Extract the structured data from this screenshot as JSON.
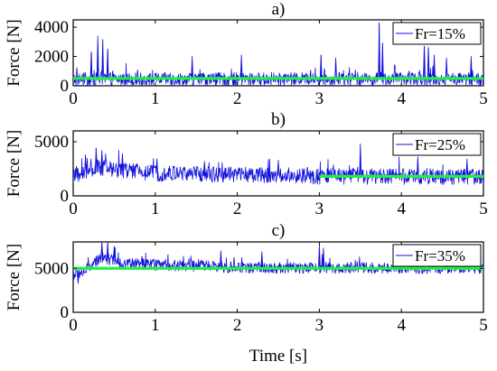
{
  "chart_data": [
    {
      "type": "line",
      "title": "a)",
      "xlabel": "",
      "ylabel": "Force [N]",
      "xlim": [
        0,
        5
      ],
      "ylim": [
        0,
        4500
      ],
      "xticks": [
        "0",
        "1",
        "2",
        "3",
        "4",
        "5"
      ],
      "yticks": [
        {
          "v": 0,
          "t": "0"
        },
        {
          "v": 2000,
          "t": "2000"
        },
        {
          "v": 4000,
          "t": "4000"
        }
      ],
      "grid": false,
      "legend_position": "top-right",
      "series": [
        {
          "name": "Fr=15%",
          "color": "#1010dd",
          "style": "noisy",
          "base": 450,
          "noise": 450,
          "floor": 0,
          "peaks": [
            [
              0.3,
              3400
            ],
            [
              0.36,
              3150
            ],
            [
              0.42,
              2500
            ],
            [
              0.22,
              2300
            ],
            [
              1.45,
              2000
            ],
            [
              2.05,
              2100
            ],
            [
              3.02,
              2100
            ],
            [
              3.2,
              1900
            ],
            [
              3.73,
              4300
            ],
            [
              3.77,
              2900
            ],
            [
              4.28,
              2700
            ],
            [
              4.33,
              2600
            ],
            [
              4.4,
              2100
            ],
            [
              4.55,
              1900
            ],
            [
              4.85,
              2000
            ]
          ]
        },
        {
          "name": "",
          "color": "#22ee44",
          "style": "mean",
          "x": [
            0,
            5
          ],
          "y": [
            500,
            500
          ]
        }
      ]
    },
    {
      "type": "line",
      "title": "b)",
      "xlabel": "",
      "ylabel": "Force [N]",
      "xlim": [
        0,
        5
      ],
      "ylim": [
        0,
        6000
      ],
      "xticks": [
        "0",
        "1",
        "2",
        "3",
        "4",
        "5"
      ],
      "yticks": [
        {
          "v": 0,
          "t": "0"
        },
        {
          "v": 5000,
          "t": "5000"
        }
      ],
      "grid": false,
      "legend_position": "top-right",
      "series": [
        {
          "name": "Fr=25%",
          "color": "#1010dd",
          "style": "noisy",
          "base": 2000,
          "noise": 750,
          "floor": 400,
          "drift": [
            [
              0,
              1700
            ],
            [
              0.3,
              2600
            ],
            [
              1.0,
              2100
            ],
            [
              3.0,
              1800
            ],
            [
              5.0,
              1800
            ]
          ],
          "peaks": [
            [
              0.28,
              4400
            ],
            [
              0.35,
              4200
            ],
            [
              0.15,
              3800
            ],
            [
              0.6,
              3900
            ],
            [
              1.02,
              3400
            ],
            [
              1.6,
              3200
            ],
            [
              2.5,
              3300
            ],
            [
              3.5,
              4800
            ],
            [
              4.2,
              3600
            ],
            [
              4.8,
              3400
            ]
          ]
        },
        {
          "name": "",
          "color": "#22ee44",
          "style": "mean",
          "x": [
            3,
            5
          ],
          "y": [
            1800,
            1800
          ]
        }
      ]
    },
    {
      "type": "line",
      "title": "c)",
      "xlabel": "Time [s]",
      "ylabel": "Force [N]",
      "xlim": [
        0,
        5
      ],
      "ylim": [
        0,
        8000
      ],
      "xticks": [
        "0",
        "1",
        "2",
        "3",
        "4",
        "5"
      ],
      "yticks": [
        {
          "v": 0,
          "t": "0"
        },
        {
          "v": 5000,
          "t": "5000"
        }
      ],
      "grid": false,
      "legend_position": "top-right",
      "series": [
        {
          "name": "Fr=35%",
          "color": "#1010dd",
          "style": "noisy",
          "base": 5000,
          "noise": 650,
          "floor": 2800,
          "drift": [
            [
              0,
              4300
            ],
            [
              0.1,
              4500
            ],
            [
              0.35,
              6200
            ],
            [
              0.6,
              5600
            ],
            [
              1.0,
              5400
            ],
            [
              2.0,
              5100
            ],
            [
              5.0,
              5000
            ]
          ],
          "peaks": [
            [
              0.06,
              3300
            ],
            [
              0.35,
              8000
            ],
            [
              0.42,
              7900
            ],
            [
              0.5,
              7500
            ],
            [
              1.8,
              7000
            ],
            [
              2.3,
              6900
            ],
            [
              3.0,
              7600
            ],
            [
              3.05,
              7300
            ],
            [
              4.1,
              7100
            ],
            [
              4.6,
              6500
            ]
          ]
        },
        {
          "name": "",
          "color": "#22ee44",
          "style": "mean",
          "x": [
            0,
            5
          ],
          "y": [
            5000,
            5000
          ]
        }
      ]
    }
  ]
}
